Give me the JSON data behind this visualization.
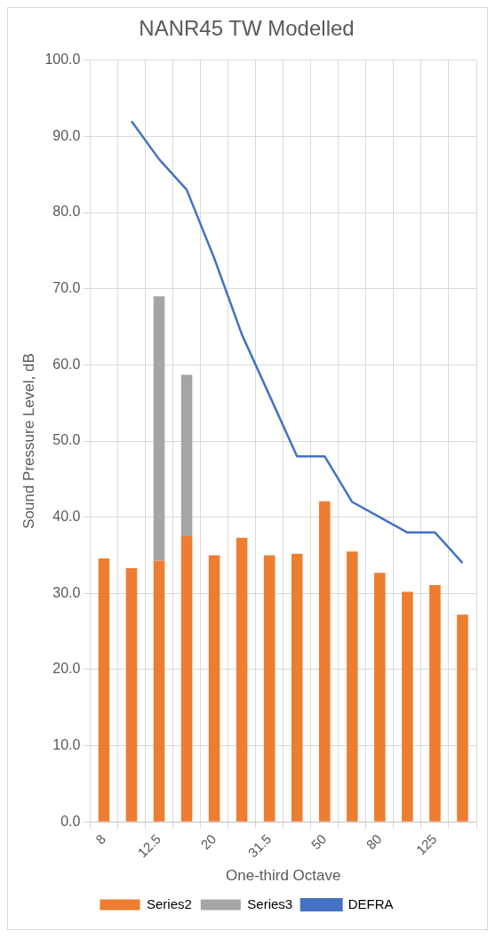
{
  "chart_data": {
    "type": "bar",
    "title": "NANR45 TW Modelled",
    "xlabel": "One-third Octave",
    "ylabel": "Sound Pressure Level, dB",
    "categories": [
      "8",
      null,
      "12.5",
      null,
      "20",
      null,
      "31.5",
      null,
      "50",
      null,
      "80",
      null,
      "125",
      null
    ],
    "stacked": true,
    "series": [
      {
        "name": "Series2",
        "color": "#ed7d31",
        "values": [
          34.6,
          33.3,
          34.3,
          37.5,
          35.0,
          37.3,
          35.0,
          35.2,
          42.1,
          35.5,
          32.7,
          30.2,
          31.1,
          27.2
        ]
      },
      {
        "name": "Series3",
        "color": "#a5a5a5",
        "values": [
          null,
          null,
          34.7,
          21.2,
          null,
          null,
          null,
          null,
          null,
          null,
          null,
          null,
          null,
          null
        ]
      },
      {
        "name": "DEFRA",
        "type": "line",
        "color": "#4472c4",
        "values": [
          null,
          92,
          87,
          83,
          74,
          64,
          56,
          48,
          48,
          42,
          40,
          38,
          38,
          34
        ]
      }
    ],
    "ylim": [
      0,
      100
    ],
    "yticks": [
      {
        "value": 0,
        "label": "0.0"
      },
      {
        "value": 10,
        "label": "10.0"
      },
      {
        "value": 20,
        "label": "20.0"
      },
      {
        "value": 30,
        "label": "30.0"
      },
      {
        "value": 40,
        "label": "40.0"
      },
      {
        "value": 50,
        "label": "50.0"
      },
      {
        "value": 60,
        "label": "60.0"
      },
      {
        "value": 70,
        "label": "70.0"
      },
      {
        "value": 80,
        "label": "80.0"
      },
      {
        "value": 90,
        "label": "90.0"
      },
      {
        "value": 100,
        "label": "100.0"
      }
    ],
    "grid": true,
    "legend": "bottom",
    "marker": "none"
  }
}
